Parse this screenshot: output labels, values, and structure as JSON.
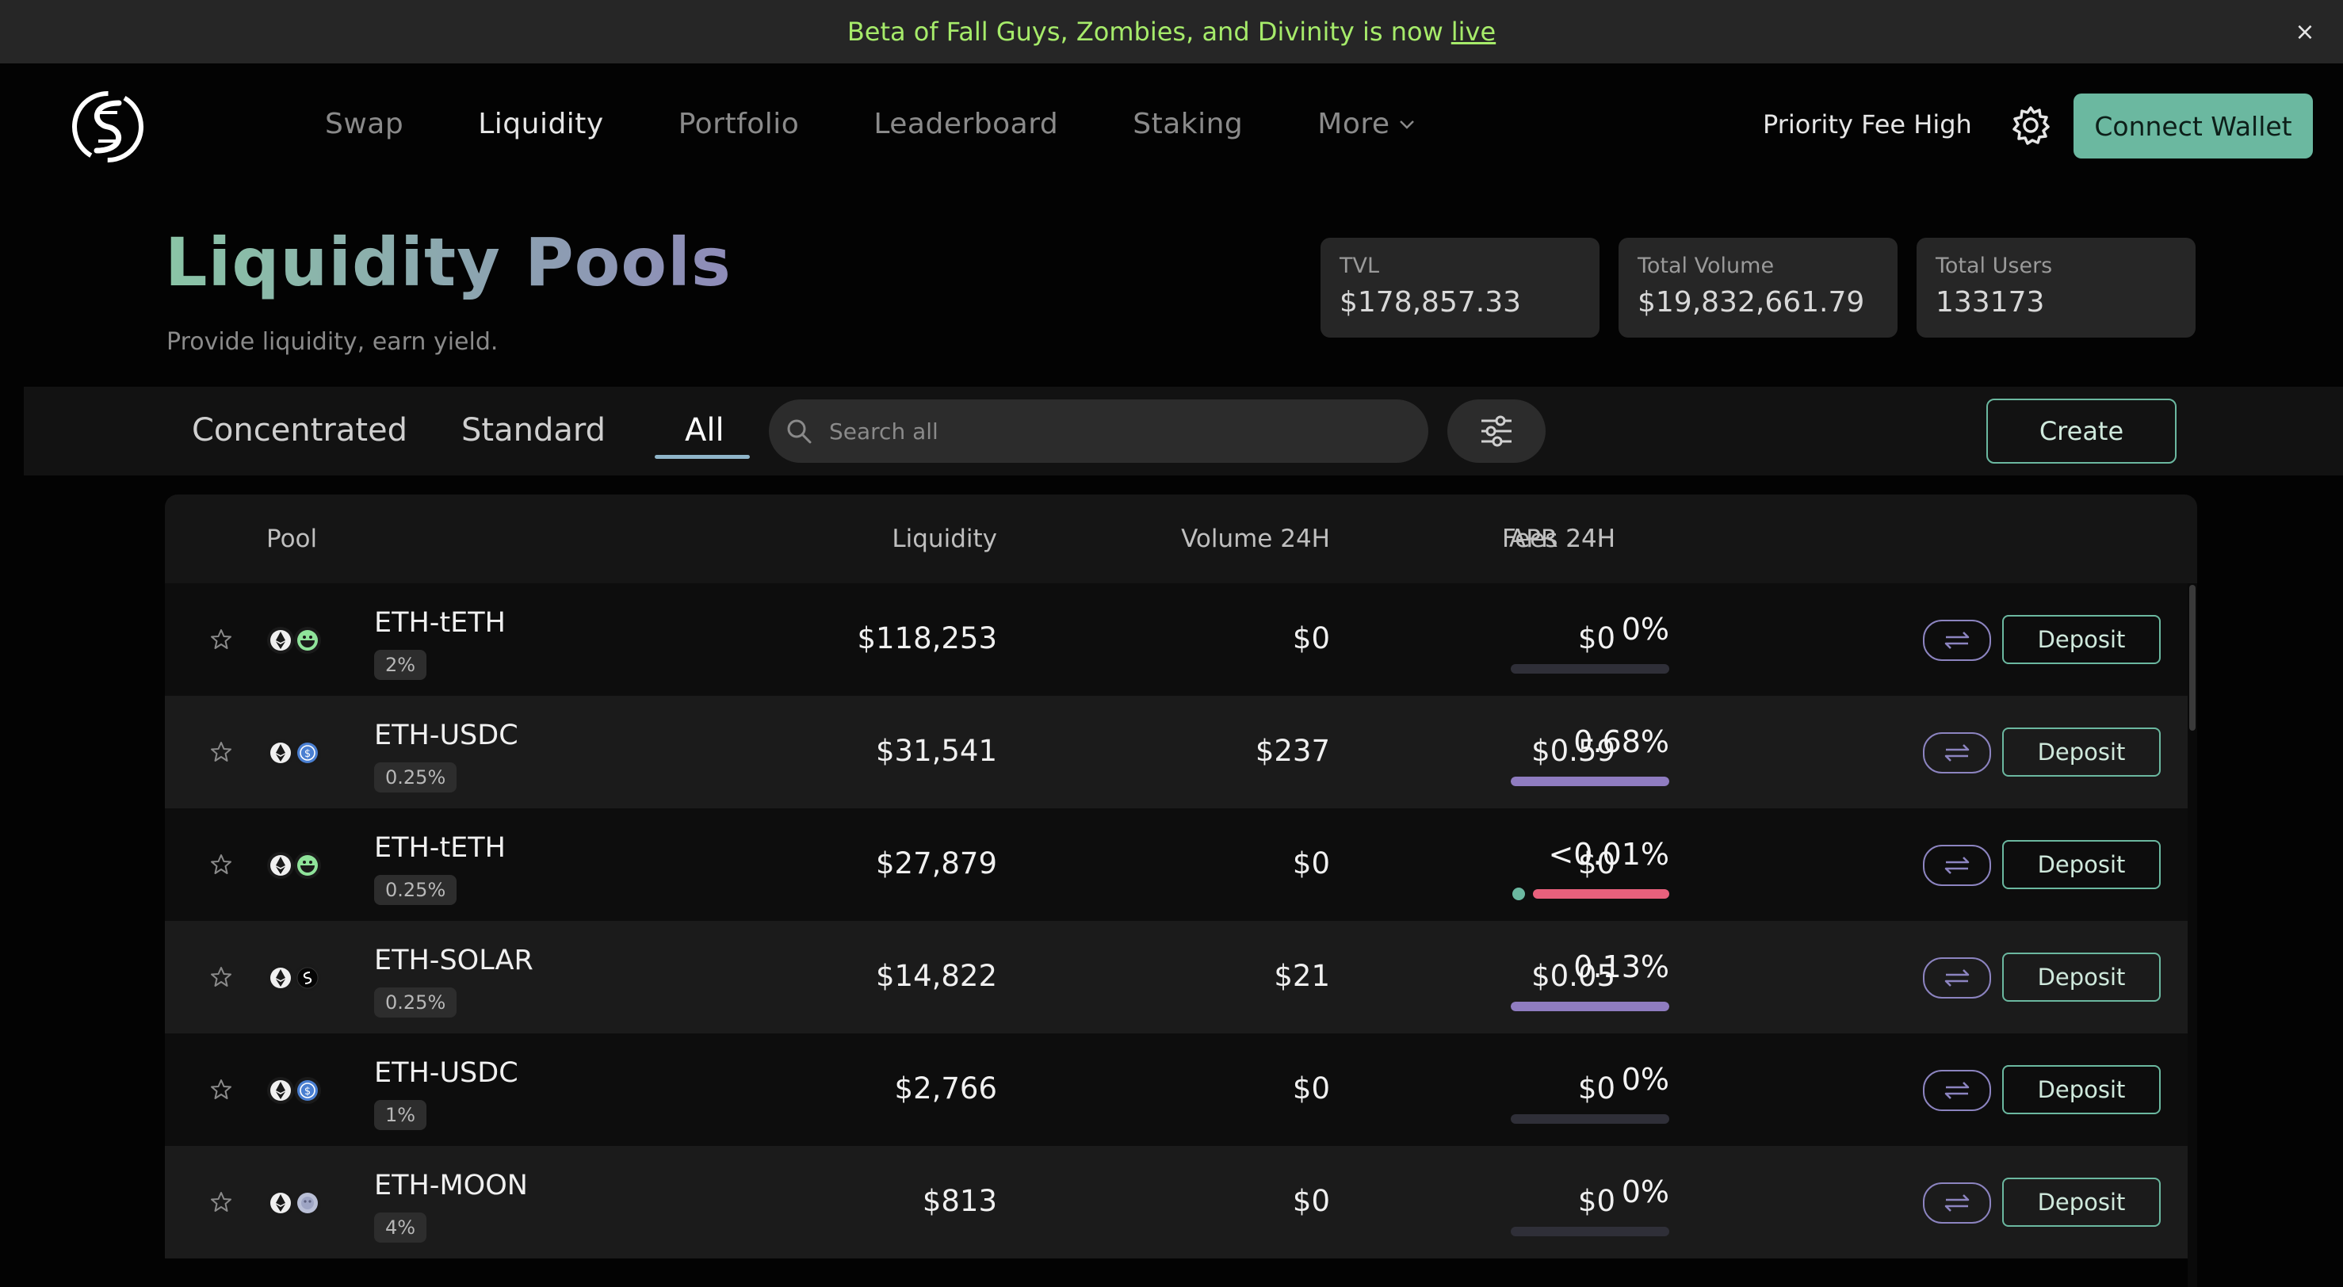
{
  "banner": {
    "text": "Beta of Fall Guys, Zombies, and Divinity is now",
    "link": "live",
    "close": "×"
  },
  "nav": {
    "links": [
      {
        "label": "Swap",
        "active": false
      },
      {
        "label": "Liquidity",
        "active": true
      },
      {
        "label": "Portfolio",
        "active": false
      },
      {
        "label": "Leaderboard",
        "active": false
      },
      {
        "label": "Staking",
        "active": false
      },
      {
        "label": "More",
        "active": false
      }
    ],
    "priority_fee": "Priority Fee High",
    "connect_wallet": "Connect Wallet"
  },
  "hero": {
    "title": "Liquidity Pools",
    "subtitle": "Provide liquidity, earn yield."
  },
  "stats": [
    {
      "label": "TVL",
      "value": "$178,857.33"
    },
    {
      "label": "Total Volume",
      "value": "$19,832,661.79"
    },
    {
      "label": "Total Users",
      "value": "133173"
    }
  ],
  "toolbar": {
    "tabs": [
      "Concentrated",
      "Standard",
      "All"
    ],
    "active_tab": "All",
    "search_placeholder": "Search all",
    "create": "Create"
  },
  "table": {
    "headers": {
      "pool": "Pool",
      "liquidity": "Liquidity",
      "volume": "Volume 24H",
      "fees": "Fees 24H",
      "apr": "APR 24H"
    },
    "deposit_label": "Deposit",
    "rows": [
      {
        "pair": "ETH-tETH",
        "fee": "2%",
        "liquidity": "$118,253",
        "volume": "$0",
        "fees": "$0",
        "apr": "0%",
        "apr_fraction": 0,
        "apr_color": "#2f2f38",
        "token2": "teth"
      },
      {
        "pair": "ETH-USDC",
        "fee": "0.25%",
        "liquidity": "$31,541",
        "volume": "$237",
        "fees": "$0.59",
        "apr": "0.68%",
        "apr_fraction": 1,
        "apr_color": "#8f7cc0",
        "token2": "usdc"
      },
      {
        "pair": "ETH-tETH",
        "fee": "0.25%",
        "liquidity": "$27,879",
        "volume": "$0",
        "fees": "$0",
        "apr": "<0.01%",
        "apr_fraction": 1,
        "apr_color": "#e8607c",
        "token2": "teth"
      },
      {
        "pair": "ETH-SOLAR",
        "fee": "0.25%",
        "liquidity": "$14,822",
        "volume": "$21",
        "fees": "$0.05",
        "apr": "0.13%",
        "apr_fraction": 1,
        "apr_color": "#8f7cc0",
        "token2": "solar"
      },
      {
        "pair": "ETH-USDC",
        "fee": "1%",
        "liquidity": "$2,766",
        "volume": "$0",
        "fees": "$0",
        "apr": "0%",
        "apr_fraction": 0,
        "apr_color": "#2f2f38",
        "token2": "usdc"
      },
      {
        "pair": "ETH-MOON",
        "fee": "4%",
        "liquidity": "$813",
        "volume": "$0",
        "fees": "$0",
        "apr": "0%",
        "apr_fraction": 0,
        "apr_color": "#2f2f38",
        "token2": "moon"
      }
    ]
  },
  "colors": {
    "accent_green": "#6bb8a0",
    "banner_text": "#a6eb6a",
    "accent_purple": "#8f7cc0",
    "accent_pink": "#e8607c"
  }
}
